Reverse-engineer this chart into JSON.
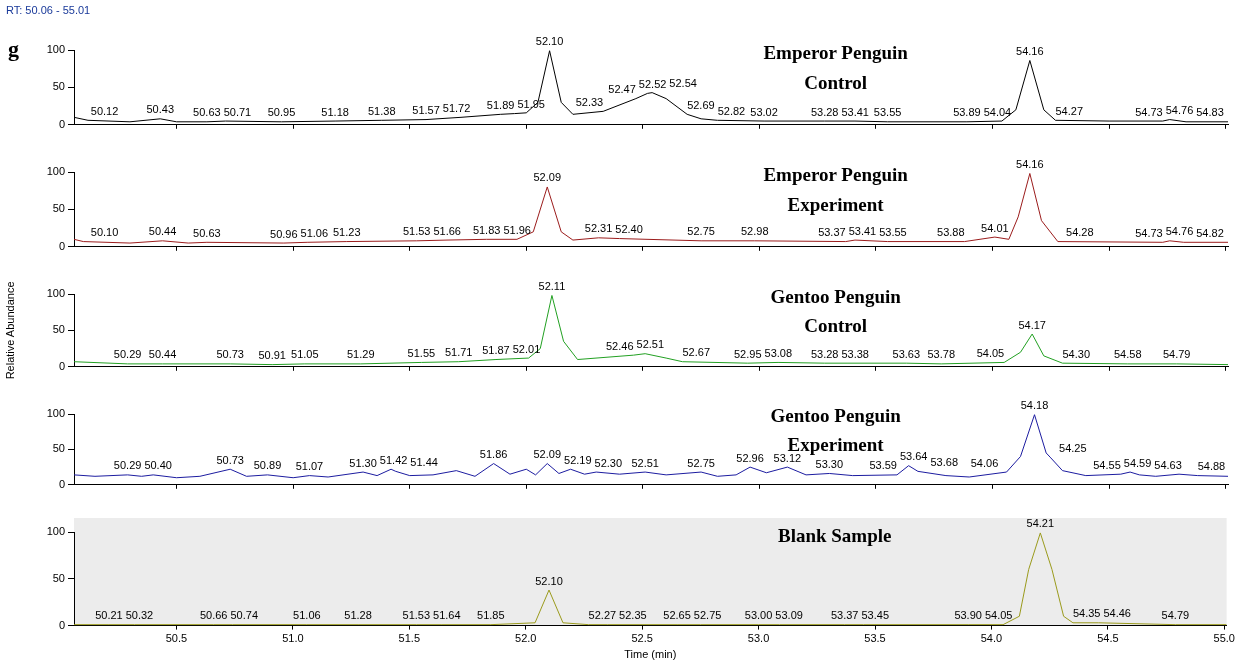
{
  "chart_data": [
    {
      "type": "line",
      "title": "Emperor Penguin",
      "subtitle": "Control",
      "annotations": [
        "RT: 50.06 - 55.01",
        "g",
        {
          "text": "50.12",
          "x": 50.12,
          "y": 6
        },
        {
          "text": "50.43",
          "x": 50.43,
          "y": 8
        },
        {
          "text": "50.63",
          "x": 50.63,
          "y": 4
        },
        {
          "text": "50.71",
          "x": 50.71,
          "y": 5
        },
        {
          "text": "50.95",
          "x": 50.95,
          "y": 4
        },
        {
          "text": "51.18",
          "x": 51.18,
          "y": 5
        },
        {
          "text": "51.38",
          "x": 51.38,
          "y": 6
        },
        {
          "text": "51.57",
          "x": 51.57,
          "y": 7
        },
        {
          "text": "51.72",
          "x": 51.72,
          "y": 10
        },
        {
          "text": "51.89",
          "x": 51.89,
          "y": 14
        },
        {
          "text": "51.95",
          "x": 51.95,
          "y": 15
        },
        {
          "text": "52.10",
          "x": 52.1,
          "y": 99
        },
        {
          "text": "52.33",
          "x": 52.33,
          "y": 18
        },
        {
          "text": "52.47",
          "x": 52.47,
          "y": 35
        },
        {
          "text": "52.52",
          "x": 52.52,
          "y": 42
        },
        {
          "text": "52.54",
          "x": 52.54,
          "y": 43
        },
        {
          "text": "52.69",
          "x": 52.69,
          "y": 14
        },
        {
          "text": "52.82",
          "x": 52.82,
          "y": 6
        },
        {
          "text": "53.02",
          "x": 53.02,
          "y": 5
        },
        {
          "text": "53.28",
          "x": 53.28,
          "y": 5
        },
        {
          "text": "53.41",
          "x": 53.41,
          "y": 5
        },
        {
          "text": "53.55",
          "x": 53.55,
          "y": 4
        },
        {
          "text": "53.89",
          "x": 53.89,
          "y": 4
        },
        {
          "text": "54.04",
          "x": 54.04,
          "y": 5
        },
        {
          "text": "54.16",
          "x": 54.16,
          "y": 86
        },
        {
          "text": "54.27",
          "x": 54.27,
          "y": 6
        },
        {
          "text": "54.73",
          "x": 54.73,
          "y": 5
        },
        {
          "text": "54.76",
          "x": 54.76,
          "y": 7
        },
        {
          "text": "54.83",
          "x": 54.83,
          "y": 4
        }
      ],
      "x": [
        50.06,
        50.12,
        50.3,
        50.43,
        50.5,
        50.63,
        50.71,
        50.95,
        51.18,
        51.38,
        51.57,
        51.72,
        51.89,
        51.95,
        52.0,
        52.05,
        52.1,
        52.15,
        52.2,
        52.33,
        52.47,
        52.52,
        52.54,
        52.6,
        52.69,
        52.75,
        52.82,
        53.02,
        53.28,
        53.41,
        53.55,
        53.89,
        54.04,
        54.1,
        54.16,
        54.22,
        54.27,
        54.5,
        54.73,
        54.76,
        54.83,
        55.01
      ],
      "series": [
        {
          "color": "#000000",
          "values": [
            10,
            6,
            4,
            8,
            4,
            4,
            5,
            4,
            5,
            6,
            7,
            10,
            14,
            15,
            16,
            30,
            99,
            30,
            14,
            18,
            35,
            42,
            43,
            35,
            14,
            8,
            6,
            5,
            5,
            5,
            4,
            4,
            5,
            20,
            86,
            20,
            6,
            5,
            5,
            7,
            4,
            4
          ]
        }
      ],
      "xlim": [
        50.06,
        55.01
      ],
      "xticks": [
        {
          "value": 50.5,
          "label": null
        },
        {
          "value": 51,
          "label": null
        },
        {
          "value": 51.5,
          "label": null
        },
        {
          "value": 52,
          "label": null
        },
        {
          "value": 52.5,
          "label": null
        },
        {
          "value": 53,
          "label": null
        },
        {
          "value": 53.5,
          "label": null
        },
        {
          "value": 54,
          "label": null
        },
        {
          "value": 54.5,
          "label": null
        },
        {
          "value": 55,
          "label": null
        }
      ],
      "ylim": [
        0,
        100
      ],
      "yticks": [
        0,
        50,
        100
      ],
      "tick_labels": "y",
      "grid": false,
      "legend": false,
      "marker": "none"
    },
    {
      "type": "line",
      "title": "Emperor Penguin",
      "subtitle": "Experiment",
      "annotations": [
        {
          "text": "50.10",
          "x": 50.1,
          "y": 7
        },
        {
          "text": "50.44",
          "x": 50.44,
          "y": 8
        },
        {
          "text": "50.63",
          "x": 50.63,
          "y": 6
        },
        {
          "text": "50.96",
          "x": 50.96,
          "y": 5
        },
        {
          "text": "51.06",
          "x": 51.06,
          "y": 6
        },
        {
          "text": "51.23",
          "x": 51.23,
          "y": 7
        },
        {
          "text": "51.53",
          "x": 51.53,
          "y": 8
        },
        {
          "text": "51.66",
          "x": 51.66,
          "y": 9
        },
        {
          "text": "51.83",
          "x": 51.83,
          "y": 10
        },
        {
          "text": "51.96",
          "x": 51.96,
          "y": 10
        },
        {
          "text": "52.09",
          "x": 52.09,
          "y": 80
        },
        {
          "text": "52.31",
          "x": 52.31,
          "y": 12
        },
        {
          "text": "52.40",
          "x": 52.4,
          "y": 11
        },
        {
          "text": "52.75",
          "x": 52.75,
          "y": 8
        },
        {
          "text": "52.98",
          "x": 52.98,
          "y": 8
        },
        {
          "text": "53.37",
          "x": 53.37,
          "y": 7
        },
        {
          "text": "53.41",
          "x": 53.41,
          "y": 9
        },
        {
          "text": "53.55",
          "x": 53.55,
          "y": 7
        },
        {
          "text": "53.88",
          "x": 53.88,
          "y": 7
        },
        {
          "text": "54.01",
          "x": 54.01,
          "y": 13
        },
        {
          "text": "54.16",
          "x": 54.16,
          "y": 98
        },
        {
          "text": "54.28",
          "x": 54.28,
          "y": 7
        },
        {
          "text": "54.73",
          "x": 54.73,
          "y": 6
        },
        {
          "text": "54.76",
          "x": 54.76,
          "y": 8
        },
        {
          "text": "54.82",
          "x": 54.82,
          "y": 6
        }
      ],
      "x": [
        50.06,
        50.1,
        50.3,
        50.44,
        50.55,
        50.63,
        50.96,
        51.06,
        51.23,
        51.53,
        51.66,
        51.83,
        51.96,
        52.03,
        52.09,
        52.15,
        52.2,
        52.31,
        52.4,
        52.75,
        52.98,
        53.37,
        53.41,
        53.55,
        53.88,
        54.01,
        54.07,
        54.11,
        54.16,
        54.21,
        54.28,
        54.73,
        54.76,
        54.82,
        55.01
      ],
      "series": [
        {
          "color": "#9b1c1c",
          "values": [
            10,
            7,
            5,
            8,
            5,
            6,
            5,
            6,
            7,
            8,
            9,
            10,
            10,
            20,
            80,
            20,
            9,
            12,
            11,
            8,
            8,
            7,
            9,
            7,
            7,
            13,
            10,
            40,
            98,
            35,
            7,
            6,
            8,
            6,
            6
          ]
        }
      ],
      "xlim": [
        50.06,
        55.01
      ],
      "xticks": [
        {
          "value": 50.5,
          "label": null
        },
        {
          "value": 51,
          "label": null
        },
        {
          "value": 51.5,
          "label": null
        },
        {
          "value": 52,
          "label": null
        },
        {
          "value": 52.5,
          "label": null
        },
        {
          "value": 53,
          "label": null
        },
        {
          "value": 53.5,
          "label": null
        },
        {
          "value": 54,
          "label": null
        },
        {
          "value": 54.5,
          "label": null
        },
        {
          "value": 55,
          "label": null
        }
      ],
      "ylim": [
        0,
        100
      ],
      "yticks": [
        0,
        50,
        100
      ],
      "tick_labels": "y",
      "grid": false,
      "legend": false,
      "marker": "none"
    },
    {
      "type": "line",
      "title": "Gentoo Penguin",
      "subtitle": "Control",
      "ylabel": "Relative Abundance",
      "annotations": [
        {
          "text": "50.29",
          "x": 50.29,
          "y": 4
        },
        {
          "text": "50.44",
          "x": 50.44,
          "y": 4
        },
        {
          "text": "50.73",
          "x": 50.73,
          "y": 4
        },
        {
          "text": "50.91",
          "x": 50.91,
          "y": 3
        },
        {
          "text": "51.05",
          "x": 51.05,
          "y": 4
        },
        {
          "text": "51.29",
          "x": 51.29,
          "y": 4
        },
        {
          "text": "51.55",
          "x": 51.55,
          "y": 6
        },
        {
          "text": "51.71",
          "x": 51.71,
          "y": 7
        },
        {
          "text": "51.87",
          "x": 51.87,
          "y": 10
        },
        {
          "text": "52.01",
          "x": 52.01,
          "y": 12
        },
        {
          "text": "52.11",
          "x": 52.11,
          "y": 98
        },
        {
          "text": "52.46",
          "x": 52.46,
          "y": 16
        },
        {
          "text": "52.51",
          "x": 52.51,
          "y": 18
        },
        {
          "text": "52.67",
          "x": 52.67,
          "y": 7
        },
        {
          "text": "52.95",
          "x": 52.95,
          "y": 5
        },
        {
          "text": "53.08",
          "x": 53.08,
          "y": 6
        },
        {
          "text": "53.28",
          "x": 53.28,
          "y": 5
        },
        {
          "text": "53.38",
          "x": 53.38,
          "y": 5
        },
        {
          "text": "53.63",
          "x": 53.63,
          "y": 5
        },
        {
          "text": "53.78",
          "x": 53.78,
          "y": 4
        },
        {
          "text": "54.05",
          "x": 54.05,
          "y": 6
        },
        {
          "text": "54.17",
          "x": 54.17,
          "y": 45
        },
        {
          "text": "54.30",
          "x": 54.3,
          "y": 5
        },
        {
          "text": "54.58",
          "x": 54.58,
          "y": 4
        },
        {
          "text": "54.79",
          "x": 54.79,
          "y": 4
        }
      ],
      "x": [
        50.06,
        50.29,
        50.44,
        50.73,
        50.91,
        51.05,
        51.29,
        51.55,
        51.71,
        51.87,
        52.01,
        52.06,
        52.11,
        52.16,
        52.22,
        52.46,
        52.51,
        52.6,
        52.67,
        52.95,
        53.08,
        53.28,
        53.38,
        53.63,
        53.78,
        54.05,
        54.12,
        54.17,
        54.22,
        54.3,
        54.58,
        54.79,
        55.01
      ],
      "series": [
        {
          "color": "#22a022",
          "values": [
            7,
            4,
            4,
            4,
            3,
            4,
            4,
            6,
            7,
            10,
            12,
            25,
            98,
            35,
            10,
            16,
            18,
            12,
            7,
            5,
            6,
            5,
            5,
            5,
            4,
            6,
            20,
            45,
            15,
            5,
            4,
            4,
            3
          ]
        }
      ],
      "xlim": [
        50.06,
        55.01
      ],
      "xticks": [
        {
          "value": 50.5,
          "label": null
        },
        {
          "value": 51,
          "label": null
        },
        {
          "value": 51.5,
          "label": null
        },
        {
          "value": 52,
          "label": null
        },
        {
          "value": 52.5,
          "label": null
        },
        {
          "value": 53,
          "label": null
        },
        {
          "value": 53.5,
          "label": null
        },
        {
          "value": 54,
          "label": null
        },
        {
          "value": 54.5,
          "label": null
        },
        {
          "value": 55,
          "label": null
        }
      ],
      "ylim": [
        0,
        100
      ],
      "yticks": [
        0,
        50,
        100
      ],
      "tick_labels": "y",
      "grid": false,
      "legend": false,
      "marker": "none"
    },
    {
      "type": "line",
      "title": "Gentoo Penguin",
      "subtitle": "Experiment",
      "annotations": [
        {
          "text": "50.29",
          "x": 50.29,
          "y": 14
        },
        {
          "text": "50.40",
          "x": 50.4,
          "y": 14
        },
        {
          "text": "50.73",
          "x": 50.73,
          "y": 22
        },
        {
          "text": "50.89",
          "x": 50.89,
          "y": 14
        },
        {
          "text": "51.07",
          "x": 51.07,
          "y": 13
        },
        {
          "text": "51.30",
          "x": 51.3,
          "y": 18
        },
        {
          "text": "51.42",
          "x": 51.42,
          "y": 22
        },
        {
          "text": "51.44",
          "x": 51.44,
          "y": 19
        },
        {
          "text": "51.86",
          "x": 51.86,
          "y": 30
        },
        {
          "text": "52.09",
          "x": 52.09,
          "y": 30
        },
        {
          "text": "52.19",
          "x": 52.19,
          "y": 22
        },
        {
          "text": "52.30",
          "x": 52.3,
          "y": 18
        },
        {
          "text": "52.51",
          "x": 52.51,
          "y": 18
        },
        {
          "text": "52.75",
          "x": 52.75,
          "y": 18
        },
        {
          "text": "52.96",
          "x": 52.96,
          "y": 25
        },
        {
          "text": "53.12",
          "x": 53.12,
          "y": 25
        },
        {
          "text": "53.30",
          "x": 53.3,
          "y": 16
        },
        {
          "text": "53.59",
          "x": 53.59,
          "y": 14
        },
        {
          "text": "53.64",
          "x": 53.64,
          "y": 27
        },
        {
          "text": "53.68",
          "x": 53.68,
          "y": 19
        },
        {
          "text": "54.06",
          "x": 54.06,
          "y": 18
        },
        {
          "text": "54.18",
          "x": 54.18,
          "y": 99
        },
        {
          "text": "54.25",
          "x": 54.25,
          "y": 38
        },
        {
          "text": "54.55",
          "x": 54.55,
          "y": 15
        },
        {
          "text": "54.59",
          "x": 54.59,
          "y": 18
        },
        {
          "text": "54.63",
          "x": 54.63,
          "y": 14
        },
        {
          "text": "54.88",
          "x": 54.88,
          "y": 13
        }
      ],
      "x": [
        50.06,
        50.15,
        50.29,
        50.35,
        50.4,
        50.5,
        50.6,
        50.73,
        50.8,
        50.89,
        51.0,
        51.07,
        51.15,
        51.3,
        51.36,
        51.42,
        51.44,
        51.5,
        51.6,
        51.7,
        51.78,
        51.86,
        51.93,
        52.0,
        52.04,
        52.09,
        52.14,
        52.19,
        52.25,
        52.3,
        52.4,
        52.51,
        52.6,
        52.75,
        52.82,
        52.9,
        52.96,
        53.03,
        53.12,
        53.2,
        53.3,
        53.4,
        53.59,
        53.64,
        53.68,
        53.8,
        53.9,
        54.06,
        54.12,
        54.18,
        54.23,
        54.25,
        54.3,
        54.4,
        54.55,
        54.59,
        54.63,
        54.7,
        54.8,
        54.88,
        55.01
      ],
      "series": [
        {
          "color": "#1c1ca0",
          "values": [
            14,
            12,
            14,
            12,
            14,
            10,
            12,
            22,
            12,
            14,
            10,
            13,
            11,
            18,
            13,
            22,
            19,
            13,
            14,
            20,
            12,
            30,
            15,
            22,
            14,
            30,
            16,
            22,
            15,
            18,
            15,
            18,
            14,
            18,
            12,
            14,
            25,
            17,
            25,
            14,
            16,
            13,
            14,
            27,
            19,
            13,
            11,
            18,
            40,
            99,
            45,
            38,
            20,
            13,
            15,
            18,
            14,
            12,
            15,
            13,
            12
          ]
        }
      ],
      "xlim": [
        50.06,
        55.01
      ],
      "xticks": [
        {
          "value": 50.5,
          "label": null
        },
        {
          "value": 51,
          "label": null
        },
        {
          "value": 51.5,
          "label": null
        },
        {
          "value": 52,
          "label": null
        },
        {
          "value": 52.5,
          "label": null
        },
        {
          "value": 53,
          "label": null
        },
        {
          "value": 53.5,
          "label": null
        },
        {
          "value": 54,
          "label": null
        },
        {
          "value": 54.5,
          "label": null
        },
        {
          "value": 55,
          "label": null
        }
      ],
      "ylim": [
        0,
        100
      ],
      "yticks": [
        0,
        50,
        100
      ],
      "tick_labels": "y",
      "grid": false,
      "legend": false,
      "marker": "none"
    },
    {
      "type": "line",
      "title": "Blank Sample",
      "xlabel": "Time (min)",
      "annotations": [
        {
          "text": "50.21",
          "x": 50.21,
          "y": 1
        },
        {
          "text": "50.32",
          "x": 50.32,
          "y": 1
        },
        {
          "text": "50.66",
          "x": 50.66,
          "y": 1
        },
        {
          "text": "50.74",
          "x": 50.74,
          "y": 1
        },
        {
          "text": "51.06",
          "x": 51.06,
          "y": 1
        },
        {
          "text": "51.28",
          "x": 51.28,
          "y": 1
        },
        {
          "text": "51.53",
          "x": 51.53,
          "y": 1
        },
        {
          "text": "51.64",
          "x": 51.64,
          "y": 1
        },
        {
          "text": "51.85",
          "x": 51.85,
          "y": 1
        },
        {
          "text": "52.10",
          "x": 52.1,
          "y": 38
        },
        {
          "text": "52.27",
          "x": 52.27,
          "y": 1
        },
        {
          "text": "52.35",
          "x": 52.35,
          "y": 1
        },
        {
          "text": "52.65",
          "x": 52.65,
          "y": 1
        },
        {
          "text": "52.75",
          "x": 52.75,
          "y": 1
        },
        {
          "text": "53.00",
          "x": 53.0,
          "y": 1
        },
        {
          "text": "53.09",
          "x": 53.09,
          "y": 1
        },
        {
          "text": "53.37",
          "x": 53.37,
          "y": 1
        },
        {
          "text": "53.45",
          "x": 53.45,
          "y": 1
        },
        {
          "text": "53.90",
          "x": 53.9,
          "y": 1
        },
        {
          "text": "54.05",
          "x": 54.05,
          "y": 1
        },
        {
          "text": "54.21",
          "x": 54.21,
          "y": 99
        },
        {
          "text": "54.35",
          "x": 54.35,
          "y": 3
        },
        {
          "text": "54.46",
          "x": 54.46,
          "y": 3
        },
        {
          "text": "54.79",
          "x": 54.79,
          "y": 1
        }
      ],
      "x": [
        50.06,
        50.21,
        50.32,
        50.66,
        50.74,
        51.06,
        51.28,
        51.53,
        51.64,
        51.85,
        52.04,
        52.1,
        52.16,
        52.27,
        52.35,
        52.65,
        52.75,
        53.0,
        53.09,
        53.37,
        53.45,
        53.9,
        54.05,
        54.12,
        54.16,
        54.21,
        54.26,
        54.31,
        54.35,
        54.46,
        54.79,
        55.01
      ],
      "series": [
        {
          "color": "#9a9a1c",
          "values": [
            1,
            1,
            1,
            1,
            1,
            1,
            1,
            1,
            1,
            1,
            3,
            38,
            3,
            1,
            1,
            1,
            1,
            1,
            1,
            1,
            1,
            1,
            1,
            10,
            60,
            99,
            60,
            10,
            3,
            3,
            1,
            1
          ]
        }
      ],
      "xlim": [
        50.06,
        55.01
      ],
      "xticks": [
        50.5,
        {
          "value": 51,
          "label": "51.0"
        },
        51.5,
        {
          "value": 52,
          "label": "52.0"
        },
        52.5,
        {
          "value": 53,
          "label": "53.0"
        },
        53.5,
        {
          "value": 54,
          "label": "54.0"
        },
        54.5,
        {
          "value": 55,
          "label": "55.0"
        }
      ],
      "ylim": [
        0,
        100
      ],
      "yticks": [
        0,
        50,
        100
      ],
      "grid": false,
      "legend": false,
      "marker": "none"
    }
  ]
}
